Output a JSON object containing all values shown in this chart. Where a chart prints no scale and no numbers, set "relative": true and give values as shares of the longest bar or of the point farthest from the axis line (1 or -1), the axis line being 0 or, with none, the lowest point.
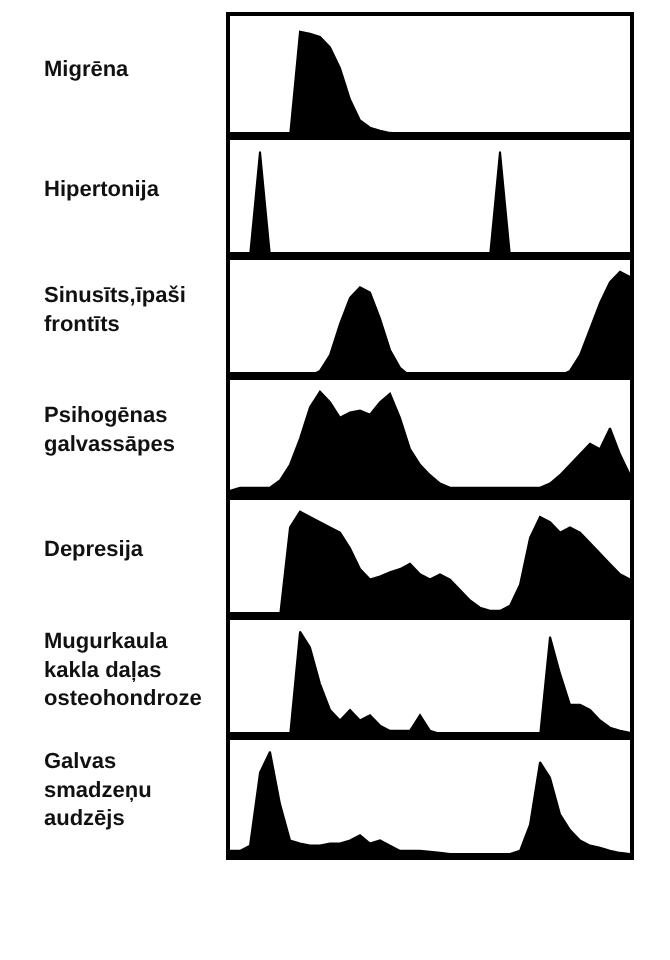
{
  "chart_data": [
    {
      "type": "area",
      "title": "Migrēna",
      "relative": true,
      "color": "#000000",
      "categories": [
        null,
        null,
        null,
        null,
        null,
        null,
        null,
        null,
        null,
        null,
        null,
        null,
        null,
        null,
        null,
        null,
        null,
        null,
        null,
        null,
        null,
        null,
        null,
        null,
        null,
        null,
        null,
        null,
        null,
        null,
        null,
        null,
        null,
        null,
        null,
        null,
        null,
        null,
        null,
        null,
        null
      ],
      "values": [
        0,
        0,
        0,
        0,
        0,
        0,
        0,
        1,
        0.98,
        0.95,
        0.85,
        0.65,
        0.35,
        0.15,
        0.08,
        0.05,
        0.03,
        0.02,
        0.01,
        0,
        0,
        0,
        0,
        0,
        0,
        0,
        0,
        0,
        0,
        0,
        0,
        0,
        0,
        0,
        0,
        0,
        0,
        0,
        0,
        0,
        0
      ]
    },
    {
      "type": "area",
      "title": "Hipertonija",
      "relative": true,
      "color": "#000000",
      "categories": [
        null,
        null,
        null,
        null,
        null,
        null,
        null,
        null,
        null,
        null,
        null,
        null,
        null,
        null,
        null,
        null,
        null,
        null,
        null,
        null,
        null,
        null,
        null,
        null,
        null,
        null,
        null,
        null,
        null,
        null,
        null,
        null,
        null,
        null,
        null,
        null,
        null,
        null,
        null,
        null,
        null
      ],
      "values": [
        0,
        0,
        0,
        1,
        0,
        0,
        0,
        0,
        0,
        0,
        0,
        0,
        0,
        0,
        0,
        0,
        0,
        0,
        0,
        0,
        0,
        0,
        0,
        0,
        0,
        0,
        0,
        1,
        0,
        0,
        0,
        0,
        0,
        0,
        0,
        0,
        0,
        0,
        0,
        0,
        0
      ]
    },
    {
      "type": "area",
      "title": "Sinusīts,īpaši\nfrontīts",
      "relative": true,
      "color": "#000000",
      "categories": [
        null,
        null,
        null,
        null,
        null,
        null,
        null,
        null,
        null,
        null,
        null,
        null,
        null,
        null,
        null,
        null,
        null,
        null,
        null,
        null,
        null,
        null,
        null,
        null,
        null,
        null,
        null,
        null,
        null,
        null,
        null,
        null,
        null,
        null,
        null,
        null,
        null,
        null,
        null,
        null,
        null
      ],
      "values": [
        0,
        0,
        0,
        0,
        0,
        0,
        0,
        0,
        0,
        0.05,
        0.2,
        0.5,
        0.75,
        0.85,
        0.8,
        0.55,
        0.25,
        0.08,
        0,
        0,
        0,
        0,
        0,
        0,
        0,
        0,
        0,
        0,
        0,
        0,
        0,
        0,
        0,
        0,
        0.05,
        0.2,
        0.45,
        0.7,
        0.9,
        1,
        0.95
      ]
    },
    {
      "type": "area",
      "title": "Psihogēnas\ngalvassāpes",
      "relative": true,
      "color": "#000000",
      "categories": [
        null,
        null,
        null,
        null,
        null,
        null,
        null,
        null,
        null,
        null,
        null,
        null,
        null,
        null,
        null,
        null,
        null,
        null,
        null,
        null,
        null,
        null,
        null,
        null,
        null,
        null,
        null,
        null,
        null,
        null,
        null,
        null,
        null,
        null,
        null,
        null,
        null,
        null,
        null,
        null,
        null
      ],
      "values": [
        0.05,
        0.08,
        0.08,
        0.08,
        0.08,
        0.15,
        0.3,
        0.55,
        0.85,
        1,
        0.9,
        0.75,
        0.8,
        0.82,
        0.78,
        0.9,
        0.98,
        0.75,
        0.45,
        0.3,
        0.2,
        0.12,
        0.08,
        0.08,
        0.08,
        0.08,
        0.08,
        0.08,
        0.08,
        0.08,
        0.08,
        0.08,
        0.12,
        0.2,
        0.3,
        0.4,
        0.5,
        0.45,
        0.65,
        0.4,
        0.2
      ]
    },
    {
      "type": "area",
      "title": "Depresija",
      "relative": true,
      "color": "#000000",
      "categories": [
        null,
        null,
        null,
        null,
        null,
        null,
        null,
        null,
        null,
        null,
        null,
        null,
        null,
        null,
        null,
        null,
        null,
        null,
        null,
        null,
        null,
        null,
        null,
        null,
        null,
        null,
        null,
        null,
        null,
        null,
        null,
        null,
        null,
        null,
        null,
        null,
        null,
        null,
        null,
        null,
        null
      ],
      "values": [
        0,
        0,
        0,
        0,
        0,
        0,
        0.85,
        1,
        0.95,
        0.9,
        0.85,
        0.8,
        0.65,
        0.45,
        0.35,
        0.38,
        0.42,
        0.45,
        0.5,
        0.4,
        0.35,
        0.4,
        0.35,
        0.25,
        0.15,
        0.08,
        0.05,
        0.05,
        0.1,
        0.3,
        0.75,
        0.95,
        0.9,
        0.8,
        0.85,
        0.8,
        0.7,
        0.6,
        0.5,
        0.4,
        0.35
      ]
    },
    {
      "type": "area",
      "title": "Mugurkaula\nkakla daļas\nosteohondroze",
      "relative": true,
      "color": "#000000",
      "categories": [
        null,
        null,
        null,
        null,
        null,
        null,
        null,
        null,
        null,
        null,
        null,
        null,
        null,
        null,
        null,
        null,
        null,
        null,
        null,
        null,
        null,
        null,
        null,
        null,
        null,
        null,
        null,
        null,
        null,
        null,
        null,
        null,
        null,
        null,
        null,
        null,
        null,
        null,
        null,
        null,
        null
      ],
      "values": [
        0,
        0,
        0,
        0,
        0,
        0,
        0,
        1,
        0.85,
        0.5,
        0.25,
        0.15,
        0.25,
        0.15,
        0.2,
        0.1,
        0.05,
        0.05,
        0.05,
        0.2,
        0.05,
        0.02,
        0,
        0,
        0,
        0,
        0,
        0,
        0,
        0,
        0,
        0,
        0.95,
        0.6,
        0.3,
        0.3,
        0.25,
        0.15,
        0.08,
        0.05,
        0.03
      ]
    },
    {
      "type": "area",
      "title": "Galvas\nsmadzeņu\naudzējs",
      "relative": true,
      "color": "#000000",
      "categories": [
        null,
        null,
        null,
        null,
        null,
        null,
        null,
        null,
        null,
        null,
        null,
        null,
        null,
        null,
        null,
        null,
        null,
        null,
        null,
        null,
        null,
        null,
        null,
        null,
        null,
        null,
        null,
        null,
        null,
        null,
        null,
        null,
        null,
        null,
        null,
        null,
        null,
        null,
        null,
        null,
        null
      ],
      "values": [
        0.05,
        0.05,
        0.1,
        0.8,
        1,
        0.5,
        0.15,
        0.12,
        0.1,
        0.1,
        0.12,
        0.12,
        0.15,
        0.2,
        0.12,
        0.15,
        0.1,
        0.05,
        0.05,
        0.05,
        0.04,
        0.03,
        0.02,
        0.02,
        0.02,
        0.02,
        0.02,
        0.02,
        0.02,
        0.05,
        0.3,
        0.9,
        0.75,
        0.4,
        0.25,
        0.15,
        0.1,
        0.08,
        0.05,
        0.03,
        0.02
      ]
    }
  ]
}
